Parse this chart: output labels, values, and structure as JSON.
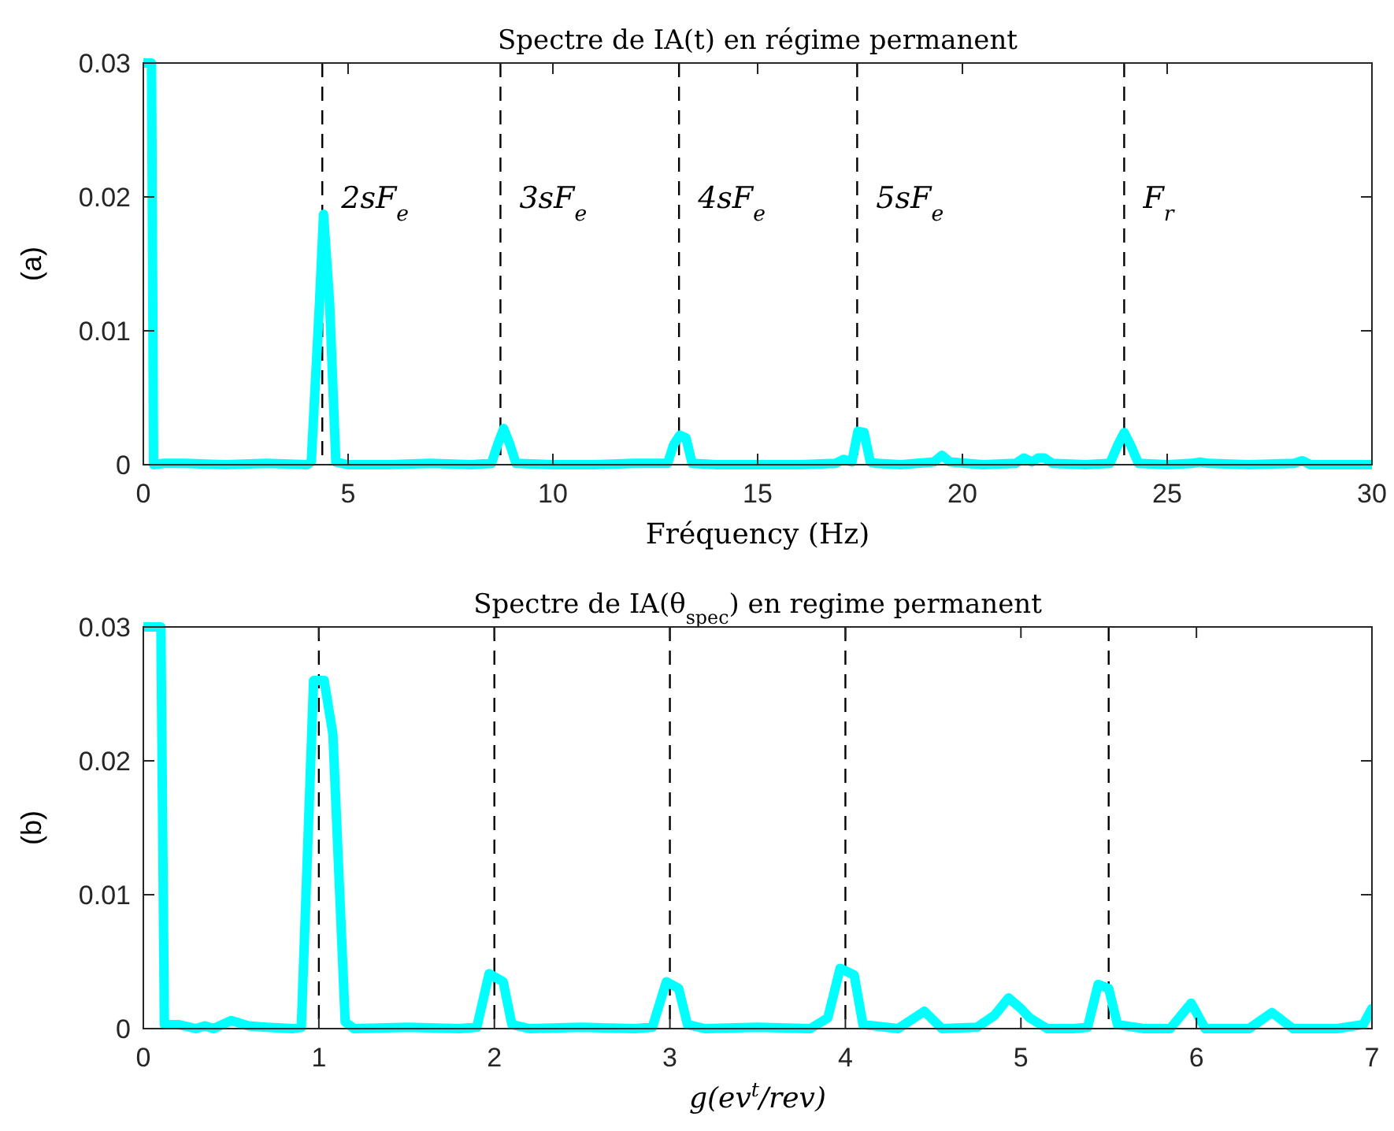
{
  "chart_data": [
    {
      "type": "line",
      "title": "Spectre de IA(t) en régime permanent",
      "xlabel": "Fréquency (Hz)",
      "ylabel": "(a)",
      "xlim": [
        0,
        30
      ],
      "xticks": [
        0,
        5,
        10,
        15,
        20,
        25,
        30
      ],
      "ylim": [
        0,
        0.03
      ],
      "yticks": [
        0,
        0.01,
        0.02,
        0.03
      ],
      "grid": false,
      "line_style": "solid",
      "series": [
        {
          "color": "#00ffff",
          "x": [
            0,
            0.2,
            0.25,
            0.5,
            1,
            2,
            3,
            4,
            4.1,
            4.3,
            4.4,
            4.55,
            4.7,
            5,
            6,
            7,
            8,
            8.5,
            8.65,
            8.8,
            8.95,
            9.1,
            10,
            11,
            12,
            12.8,
            12.95,
            13.1,
            13.25,
            13.4,
            14,
            15,
            16,
            16.9,
            17.1,
            17.3,
            17.45,
            17.6,
            17.75,
            17.9,
            18.5,
            19.3,
            19.5,
            19.7,
            20.5,
            21.3,
            21.5,
            21.7,
            21.85,
            22,
            22.2,
            23,
            23.6,
            23.8,
            23.95,
            24.1,
            24.3,
            25,
            25.6,
            25.8,
            26,
            27,
            28.1,
            28.3,
            28.5,
            29,
            30
          ],
          "values": [
            0.03,
            0.03,
            0,
            0.0001,
            0.0001,
            0,
            0.0001,
            0,
            0.0002,
            0.012,
            0.0187,
            0.012,
            0.0002,
            0,
            0,
            0.0001,
            0,
            0.0001,
            0.0015,
            0.0027,
            0.0015,
            0.0001,
            0,
            0,
            0.0001,
            0.0001,
            0.0015,
            0.0022,
            0.002,
            0.0001,
            0,
            0,
            0,
            0.0001,
            0.0004,
            0.0002,
            0.0025,
            0.0024,
            0.0002,
            0.0001,
            0,
            0.0002,
            0.0007,
            0.0002,
            0,
            0.0001,
            0.0005,
            0.0002,
            0.0005,
            0.0005,
            0.0001,
            0,
            0.0001,
            0.0015,
            0.0024,
            0.0015,
            0.0001,
            0,
            0.0001,
            0.0002,
            0.0001,
            0,
            0.0001,
            0.0003,
            0,
            0,
            0
          ]
        }
      ],
      "ref_lines": [
        {
          "axis": "x",
          "value": 4.37,
          "label": "2sF$_{e}$",
          "line_style": "dashed",
          "color": "#000000"
        },
        {
          "axis": "x",
          "value": 8.72,
          "label": "3sF$_{e}$",
          "line_style": "dashed",
          "color": "#000000"
        },
        {
          "axis": "x",
          "value": 13.08,
          "label": "4sF$_{e}$",
          "line_style": "dashed",
          "color": "#000000"
        },
        {
          "axis": "x",
          "value": 17.43,
          "label": "5sF$_{e}$",
          "line_style": "dashed",
          "color": "#000000"
        },
        {
          "axis": "x",
          "value": 23.95,
          "label": "F$_{r}$",
          "line_style": "dashed",
          "color": "#000000"
        }
      ]
    },
    {
      "type": "line",
      "title": "Spectre de IA(θ$_{spec}$) en regime permanent",
      "xlabel": "g(ev$^{t}$/rev)",
      "ylabel": "(b)",
      "xlim": [
        0,
        7
      ],
      "xticks": [
        0,
        1,
        2,
        3,
        4,
        5,
        6,
        7
      ],
      "ylim": [
        0,
        0.03
      ],
      "yticks": [
        0,
        0.01,
        0.02,
        0.03
      ],
      "grid": false,
      "line_style": "solid",
      "series": [
        {
          "color": "#00ffff",
          "x": [
            0,
            0.1,
            0.12,
            0.2,
            0.3,
            0.35,
            0.4,
            0.5,
            0.6,
            0.7,
            0.85,
            0.9,
            0.97,
            1.03,
            1.08,
            1.15,
            1.2,
            1.5,
            1.8,
            1.9,
            1.97,
            2.05,
            2.1,
            2.2,
            2.5,
            2.8,
            2.9,
            2.98,
            3.05,
            3.1,
            3.2,
            3.5,
            3.8,
            3.9,
            3.97,
            4.05,
            4.1,
            4.3,
            4.45,
            4.55,
            4.75,
            4.85,
            4.93,
            5.0,
            5.05,
            5.15,
            5.3,
            5.38,
            5.44,
            5.5,
            5.55,
            5.7,
            5.85,
            5.97,
            6.05,
            6.3,
            6.43,
            6.55,
            6.8,
            6.95,
            7
          ],
          "values": [
            0.03,
            0.03,
            0.0003,
            0.0003,
            0,
            0.0002,
            0,
            0.0006,
            0.0002,
            0.0001,
            0,
            0.0001,
            0.026,
            0.026,
            0.022,
            0.0005,
            0,
            0.0001,
            0,
            0.0001,
            0.0041,
            0.0035,
            0.0003,
            0,
            0.0001,
            0,
            0.0001,
            0.0035,
            0.003,
            0.0003,
            0,
            0.0001,
            0,
            0.0008,
            0.0045,
            0.004,
            0.0003,
            0,
            0.0013,
            0,
            0.0001,
            0.001,
            0.0023,
            0.0015,
            0.0008,
            0,
            0,
            0.0001,
            0.0033,
            0.003,
            0.0003,
            0,
            0,
            0.0019,
            0,
            0,
            0.0012,
            0,
            0,
            0.0003,
            0.0015
          ]
        }
      ],
      "ref_lines": [
        {
          "axis": "x",
          "value": 1,
          "line_style": "dashed",
          "color": "#000000"
        },
        {
          "axis": "x",
          "value": 2,
          "line_style": "dashed",
          "color": "#000000"
        },
        {
          "axis": "x",
          "value": 3,
          "line_style": "dashed",
          "color": "#000000"
        },
        {
          "axis": "x",
          "value": 4,
          "line_style": "dashed",
          "color": "#000000"
        },
        {
          "axis": "x",
          "value": 5.5,
          "line_style": "dashed",
          "color": "#000000"
        }
      ]
    }
  ]
}
